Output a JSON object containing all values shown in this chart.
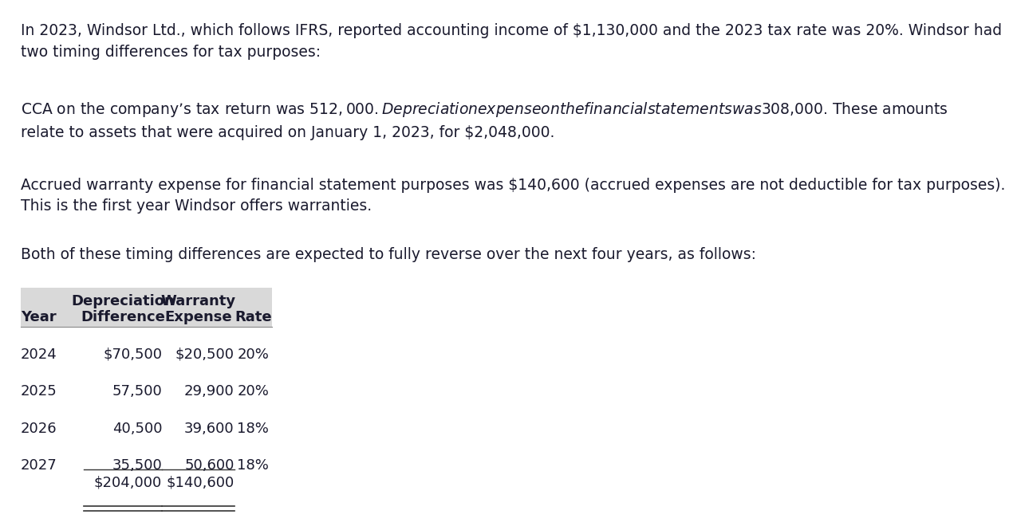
{
  "paragraph1": "In 2023, Windsor Ltd., which follows IFRS, reported accounting income of $1,130,000 and the 2023 tax rate was 20%. Windsor had\ntwo timing differences for tax purposes:",
  "paragraph2": "CCA on the company’s tax return was $512,000. Depreciation expense on the financial statements was $308,000. These amounts\nrelate to assets that were acquired on January 1, 2023, for $2,048,000.",
  "paragraph3": "Accrued warranty expense for financial statement purposes was $140,600 (accrued expenses are not deductible for tax purposes).\nThis is the first year Windsor offers warranties.",
  "paragraph4": "Both of these timing differences are expected to fully reverse over the next four years, as follows:",
  "table_header_row1": [
    "",
    "Depreciation",
    "Warranty",
    ""
  ],
  "table_header_row2": [
    "Year",
    "Difference",
    "Expense",
    "Rate"
  ],
  "table_rows": [
    [
      "2024",
      "$70,500",
      "$20,500",
      "20%"
    ],
    [
      "2025",
      "57,500",
      "29,900",
      "20%"
    ],
    [
      "2026",
      "40,500",
      "39,600",
      "18%"
    ],
    [
      "2027",
      "35,500",
      "50,600",
      "18%"
    ]
  ],
  "table_total_row": [
    "",
    "$204,000",
    "$140,600",
    ""
  ],
  "bg_color": "#ffffff",
  "text_color": "#1a1a2e",
  "header_bg": "#d9d9d9",
  "font_size_text": 13.5,
  "font_size_table": 13.0
}
